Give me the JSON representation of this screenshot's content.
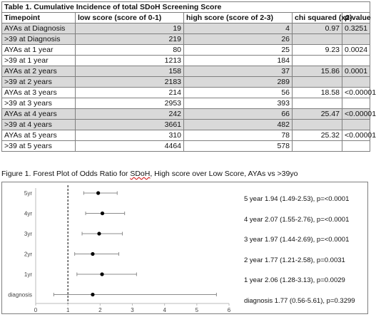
{
  "table": {
    "title": "Table 1. Cumulative Incidence of total SDoH Screening Score",
    "headers": [
      "Timepoint",
      "low score (score of 0-1)",
      "high score (score of 2-3)",
      "chi squared (x2)",
      "p-value"
    ],
    "rows": [
      {
        "timepoint": "AYAs at Diagnosis",
        "low": "19",
        "high": "4",
        "chi": "0.97",
        "p": "0.3251",
        "shaded": true
      },
      {
        "timepoint": ">39 at Diagnosis",
        "low": "219",
        "high": "26",
        "chi": "",
        "p": "",
        "shaded": true
      },
      {
        "timepoint": "AYAs at 1 year",
        "low": "80",
        "high": "25",
        "chi": "9.23",
        "p": "0.0024",
        "shaded": false
      },
      {
        "timepoint": ">39 at 1 year",
        "low": "1213",
        "high": "184",
        "chi": "",
        "p": "",
        "shaded": false
      },
      {
        "timepoint": "AYAs at 2 years",
        "low": "158",
        "high": "37",
        "chi": "15.86",
        "p": "0.0001",
        "shaded": true
      },
      {
        "timepoint": ">39 at 2 years",
        "low": "2183",
        "high": "289",
        "chi": "",
        "p": "",
        "shaded": true
      },
      {
        "timepoint": "AYAs at 3 years",
        "low": "214",
        "high": "56",
        "chi": "18.58",
        "p": "<0.00001",
        "shaded": false
      },
      {
        "timepoint": ">39 at 3 years",
        "low": "2953",
        "high": "393",
        "chi": "",
        "p": "",
        "shaded": false
      },
      {
        "timepoint": "AYAs at 4 years",
        "low": "242",
        "high": "66",
        "chi": "25.47",
        "p": "<0.00001",
        "shaded": true
      },
      {
        "timepoint": ">39 at 4 years",
        "low": "3661",
        "high": "482",
        "chi": "",
        "p": "",
        "shaded": true
      },
      {
        "timepoint": "AYAs at 5 years",
        "low": "310",
        "high": "78",
        "chi": "25.32",
        "p": "<0.00001",
        "shaded": false
      },
      {
        "timepoint": ">39 at 5 years",
        "low": "4464",
        "high": "578",
        "chi": "",
        "p": "",
        "shaded": false
      }
    ]
  },
  "figure": {
    "caption_before": "Figure 1. Forest Plot of Odds Ratio for ",
    "caption_sdoh": "SDoH",
    "caption_after": ", High score over Low Score, AYAs vs >39yo"
  },
  "chart_data": {
    "type": "scatter",
    "xlim": [
      0,
      6
    ],
    "x_ticks": [
      "0",
      "1",
      "2",
      "3",
      "4",
      "5",
      "6"
    ],
    "reference_line": 1,
    "categories": [
      "5yr",
      "4yr",
      "3yr",
      "2yr",
      "1yr",
      "diagnosis"
    ],
    "series": [
      {
        "or": [
          1.94,
          2.07,
          1.97,
          1.77,
          2.06,
          1.77
        ],
        "lower": [
          1.49,
          1.55,
          1.44,
          1.21,
          1.28,
          0.56
        ],
        "upper": [
          2.53,
          2.76,
          2.69,
          2.58,
          3.13,
          5.61
        ]
      }
    ],
    "annotations": [
      "5 year 1.94 (1.49-2.53), p=<0.0001",
      "4 year 2.07 (1.55-2.76), p=<0.0001",
      "3 year 1.97 (1.44-2.69), p=<0.0001",
      "2 year 1.77 (1.21-2.58), p=0.0031",
      "1 year 2.06 (1.28-3.13), p=0.0029",
      "diagnosis 1.77 (0.56-5.61), p=0.3299"
    ]
  }
}
